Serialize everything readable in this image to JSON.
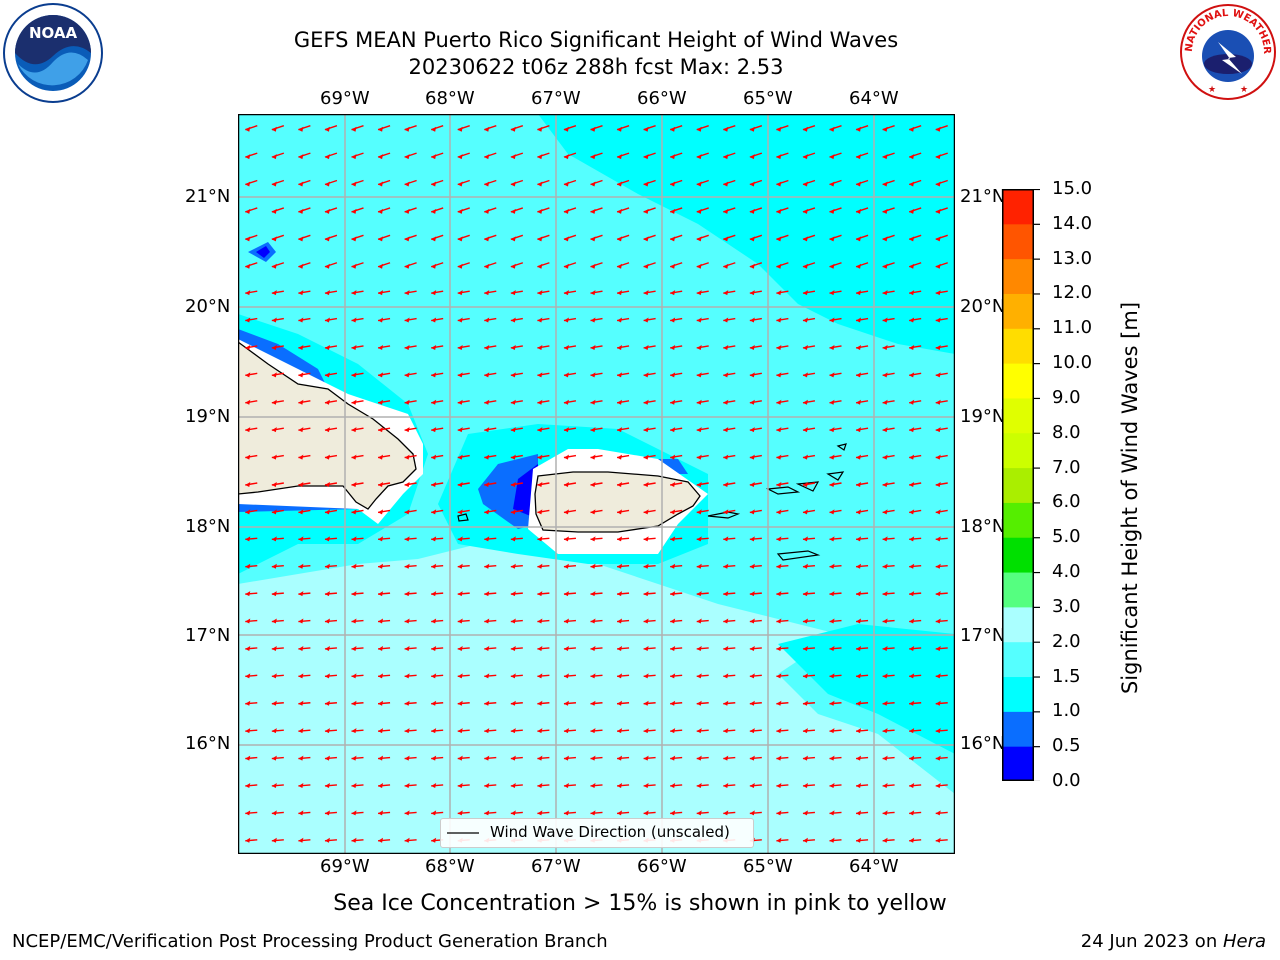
{
  "title": {
    "line1": "GEFS MEAN Puerto Rico Significant Height of Wind Waves",
    "line2": "20230622 t06z 288h fcst   Max: 2.53"
  },
  "logos": {
    "noaa_text": "NOAA",
    "nws_text": "NATIONAL WEATHER SERVICE"
  },
  "map": {
    "lon_labels": [
      "69°W",
      "68°W",
      "67°W",
      "66°W",
      "65°W",
      "64°W"
    ],
    "lat_labels": [
      "21°N",
      "20°N",
      "19°N",
      "18°N",
      "17°N",
      "16°N"
    ],
    "legend_label": "Wind Wave Direction (unscaled)",
    "colors": {
      "ocean_light": "#aaffff",
      "ocean_mid": "#55ffff",
      "ocean_cyan": "#00ffff",
      "land": "#efecdc",
      "arrow": "#ff0000",
      "grid": "#b0b0b0"
    }
  },
  "colorbar": {
    "label": "Significant Height of Wind Waves [m]",
    "tick_labels": [
      "15.0",
      "14.0",
      "13.0",
      "12.0",
      "11.0",
      "10.0",
      "9.0",
      "8.0",
      "7.0",
      "6.0",
      "5.0",
      "4.0",
      "3.0",
      "2.0",
      "1.5",
      "1.0",
      "0.5",
      "0.0"
    ],
    "bands": [
      {
        "range": "0.0-0.5",
        "color": "#0000ff"
      },
      {
        "range": "0.5-1.0",
        "color": "#0a6eff"
      },
      {
        "range": "1.0-1.5",
        "color": "#00ffff"
      },
      {
        "range": "1.5-2.0",
        "color": "#55ffff"
      },
      {
        "range": "2.0-3.0",
        "color": "#aaffff"
      },
      {
        "range": "3.0-4.0",
        "color": "#55ff80"
      },
      {
        "range": "4.0-5.0",
        "color": "#00e000"
      },
      {
        "range": "5.0-6.0",
        "color": "#55ee00"
      },
      {
        "range": "6.0-7.0",
        "color": "#aaee00"
      },
      {
        "range": "7.0-8.0",
        "color": "#ccff00"
      },
      {
        "range": "8.0-9.0",
        "color": "#e0ff00"
      },
      {
        "range": "9.0-10.0",
        "color": "#ffff00"
      },
      {
        "range": "10.0-11.0",
        "color": "#ffdd00"
      },
      {
        "range": "11.0-12.0",
        "color": "#ffb000"
      },
      {
        "range": "12.0-13.0",
        "color": "#ff8800"
      },
      {
        "range": "13.0-14.0",
        "color": "#ff5500"
      },
      {
        "range": "14.0-15.0",
        "color": "#ff2200"
      },
      {
        "range": "15.0+",
        "color": "#ff0000"
      }
    ]
  },
  "footer": {
    "subtitle": "Sea Ice Concentration > 15% is shown in pink to yellow",
    "left": "NCEP/EMC/Verification Post Processing Product Generation Branch",
    "right_prefix": "24 Jun 2023 on ",
    "right_machine": "Hera"
  }
}
